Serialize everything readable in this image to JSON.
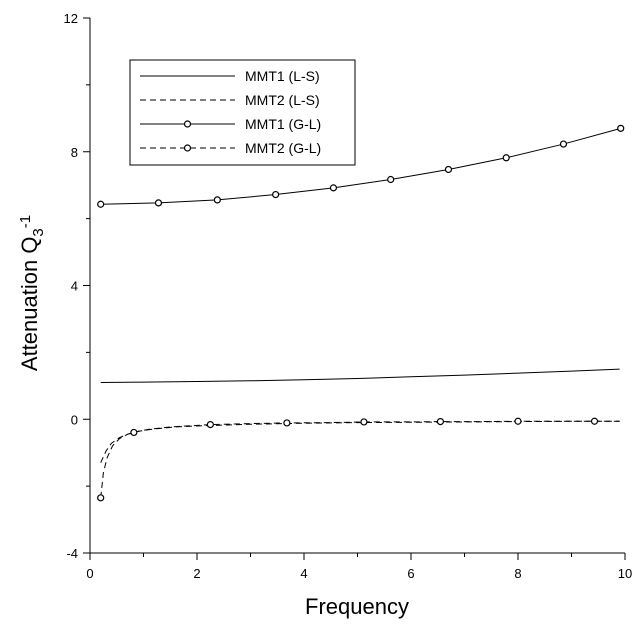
{
  "chart_data": {
    "type": "line",
    "title": "",
    "xlabel": "Frequency",
    "ylabel": {
      "base": "Attenuation Q",
      "subscript": "3",
      "superscript": "-1"
    },
    "xlim": [
      0,
      10
    ],
    "ylim": [
      -4,
      12
    ],
    "xticks": [
      0,
      2,
      4,
      6,
      8,
      10
    ],
    "yticks": [
      -4,
      0,
      4,
      8,
      12
    ],
    "grid": false,
    "legend_position": "top-left",
    "series": [
      {
        "name": "MMT1 (L-S)",
        "line_style": "solid",
        "marker": "none",
        "x": [
          0.2,
          1.0,
          2.0,
          3.0,
          4.0,
          5.0,
          6.0,
          7.0,
          8.0,
          9.0,
          9.9
        ],
        "y": [
          1.1,
          1.11,
          1.13,
          1.15,
          1.18,
          1.22,
          1.27,
          1.32,
          1.38,
          1.44,
          1.5
        ]
      },
      {
        "name": "MMT2 (L-S)",
        "line_style": "dashed",
        "marker": "none",
        "x": [
          0.2,
          0.3,
          0.4,
          0.55,
          0.7,
          0.9,
          1.2,
          1.6,
          2.0,
          3.0,
          4.0,
          5.0,
          6.0,
          7.0,
          8.0,
          9.0,
          9.9
        ],
        "y": [
          -1.3,
          -0.95,
          -0.72,
          -0.55,
          -0.45,
          -0.36,
          -0.29,
          -0.23,
          -0.2,
          -0.15,
          -0.12,
          -0.1,
          -0.09,
          -0.08,
          -0.07,
          -0.06,
          -0.06
        ]
      },
      {
        "name": "MMT1 (G-L)",
        "line_style": "solid",
        "marker": "circle",
        "x": [
          0.2,
          1.28,
          2.38,
          3.47,
          4.55,
          5.62,
          6.7,
          7.78,
          8.85,
          9.92
        ],
        "y": [
          6.43,
          6.47,
          6.56,
          6.72,
          6.92,
          7.17,
          7.47,
          7.82,
          8.23,
          8.7
        ]
      },
      {
        "name": "MMT2 (G-L)",
        "line_style": "dashed",
        "marker": "circle",
        "x": [
          0.2,
          0.25,
          0.32,
          0.42,
          0.55,
          0.7,
          0.85,
          1.1,
          1.5,
          2.25,
          3.0,
          3.68,
          4.5,
          5.12,
          6.0,
          6.55,
          7.3,
          8.0,
          8.7,
          9.43,
          9.9
        ],
        "y": [
          -2.35,
          -1.6,
          -1.15,
          -0.8,
          -0.58,
          -0.45,
          -0.38,
          -0.3,
          -0.23,
          -0.16,
          -0.13,
          -0.11,
          -0.1,
          -0.08,
          -0.08,
          -0.07,
          -0.07,
          -0.06,
          -0.06,
          -0.06,
          -0.06
        ],
        "marker_x": [
          0.2,
          0.82,
          2.25,
          3.68,
          5.12,
          6.55,
          8.0,
          9.43
        ]
      }
    ]
  }
}
